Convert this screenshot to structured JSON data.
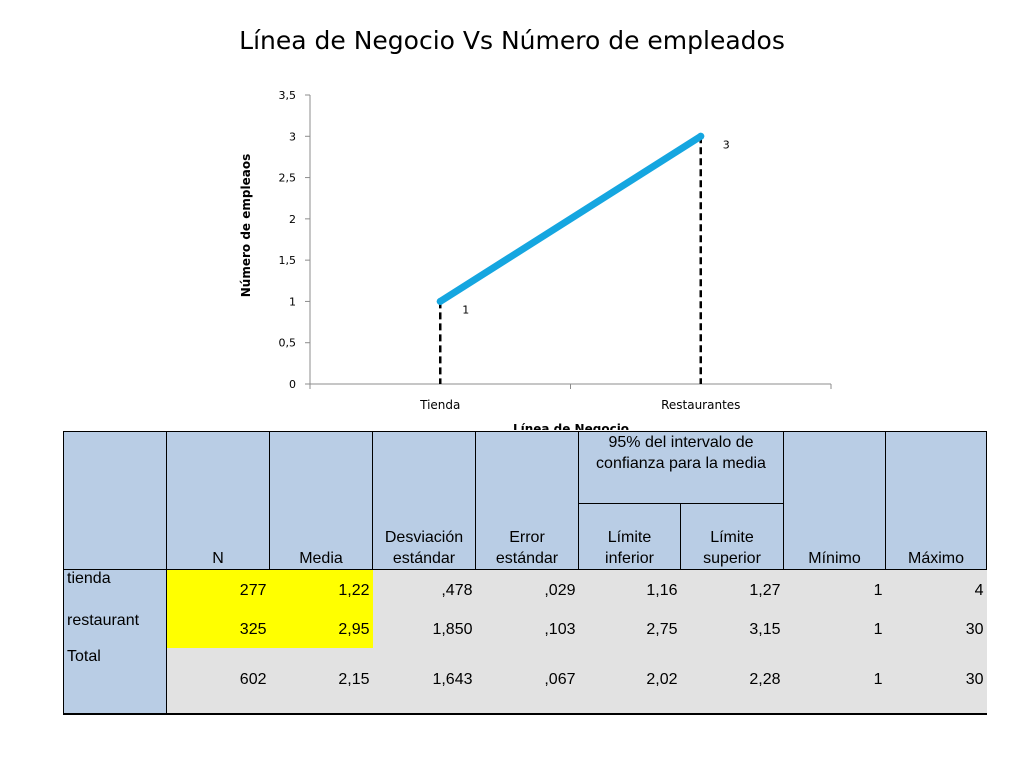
{
  "title": "Línea de Negocio Vs  Número de empleados",
  "chart_data": {
    "type": "line",
    "categories": [
      "Tienda",
      "Restaurantes"
    ],
    "series": [
      {
        "values": [
          1,
          3
        ],
        "color": "#15a6e0"
      }
    ],
    "data_labels": [
      "1",
      "3"
    ],
    "xlabel": "Línea de Negocio",
    "ylabel": "Número de empleaos",
    "ylim": [
      0,
      3.5
    ],
    "yticks": [
      "0",
      "0,5",
      "1",
      "1,5",
      "2",
      "2,5",
      "3",
      "3,5"
    ],
    "grid": false,
    "drop_lines": true
  },
  "table": {
    "headers": {
      "n": "N",
      "media": "Media",
      "desv": "Desviación estándar",
      "error": "Error estándar",
      "intervalo": "95% del intervalo de confianza para la media",
      "lim_inf": "Límite inferior",
      "lim_sup": "Límite superior",
      "min": "Mínimo",
      "max": "Máximo"
    },
    "rows": [
      {
        "label": "tienda",
        "cells": [
          "277",
          "1,22",
          ",478",
          ",029",
          "1,16",
          "1,27",
          "1",
          "4"
        ]
      },
      {
        "label": "restaurant",
        "cells": [
          "325",
          "2,95",
          "1,850",
          ",103",
          "2,75",
          "3,15",
          "1",
          "30"
        ]
      },
      {
        "label": "Total",
        "cells": [
          "602",
          "2,15",
          "1,643",
          ",067",
          "2,02",
          "2,28",
          "1",
          "30"
        ]
      }
    ],
    "highlight_color": "#ffff00",
    "header_color": "#b9cde5",
    "cell_color": "#e2e2e2"
  }
}
